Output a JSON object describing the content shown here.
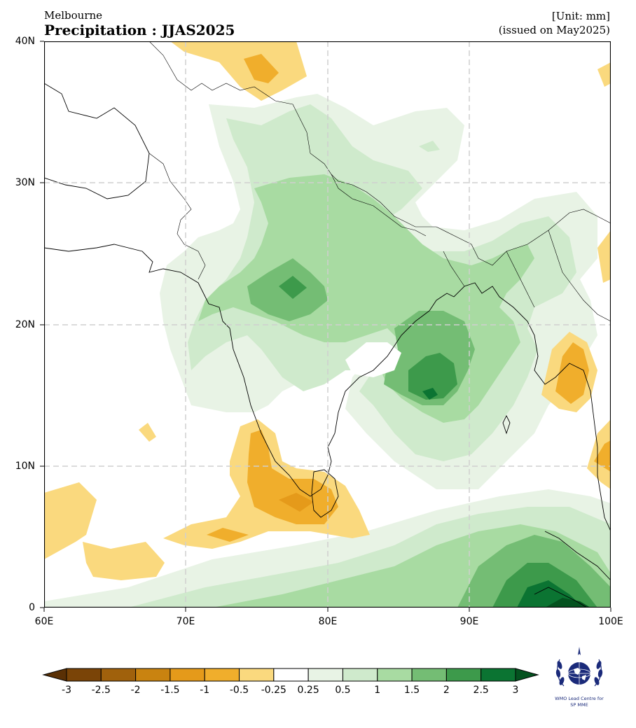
{
  "header": {
    "source": "Melbourne",
    "title": "Precipitation : JJAS2025",
    "unit": "[Unit: mm]",
    "issued": "(issued on May2025)"
  },
  "map": {
    "lon_range": [
      60,
      100
    ],
    "lat_range": [
      0,
      40
    ],
    "x_ticks": [
      "60E",
      "70E",
      "80E",
      "90E",
      "100E"
    ],
    "y_ticks": [
      "40N",
      "30N",
      "20N",
      "10N",
      "0"
    ],
    "grid": "dashed"
  },
  "colorbar": {
    "labels": [
      "-3",
      "-2.5",
      "-2",
      "-1.5",
      "-1",
      "-0.5",
      "-0.25",
      "0.25",
      "0.5",
      "1",
      "1.5",
      "2",
      "2.5",
      "3"
    ],
    "colors": [
      "#7a4407",
      "#a0610c",
      "#c98310",
      "#e59a1a",
      "#f0ae2c",
      "#fad97e",
      "#ffffff",
      "#e8f3e5",
      "#cfeacc",
      "#a8dba2",
      "#74bd74",
      "#3d9a4b",
      "#0b7432"
    ],
    "extend_low_color": "#5a3005",
    "extend_high_color": "#04521f"
  },
  "logo": {
    "line1": "WMO Lead Centre for",
    "line2": "SP MME"
  }
}
